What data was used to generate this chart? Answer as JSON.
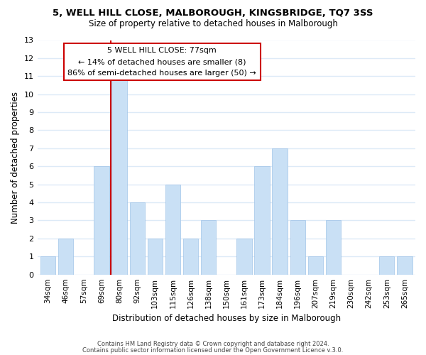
{
  "title1": "5, WELL HILL CLOSE, MALBOROUGH, KINGSBRIDGE, TQ7 3SS",
  "title2": "Size of property relative to detached houses in Malborough",
  "xlabel": "Distribution of detached houses by size in Malborough",
  "ylabel": "Number of detached properties",
  "bar_labels": [
    "34sqm",
    "46sqm",
    "57sqm",
    "69sqm",
    "80sqm",
    "92sqm",
    "103sqm",
    "115sqm",
    "126sqm",
    "138sqm",
    "150sqm",
    "161sqm",
    "173sqm",
    "184sqm",
    "196sqm",
    "207sqm",
    "219sqm",
    "230sqm",
    "242sqm",
    "253sqm",
    "265sqm"
  ],
  "bar_values": [
    1,
    2,
    0,
    6,
    11,
    4,
    2,
    5,
    2,
    3,
    0,
    2,
    6,
    7,
    3,
    1,
    3,
    0,
    0,
    1,
    1
  ],
  "bar_color": "#c9e0f5",
  "bar_edge_color": "#a0c4e8",
  "vline_index": 4,
  "vline_color": "#cc0000",
  "annotation_title": "5 WELL HILL CLOSE: 77sqm",
  "annotation_line1": "← 14% of detached houses are smaller (8)",
  "annotation_line2": "86% of semi-detached houses are larger (50) →",
  "annotation_box_color": "#ffffff",
  "annotation_box_edge": "#cc0000",
  "ylim": [
    0,
    13
  ],
  "yticks": [
    0,
    1,
    2,
    3,
    4,
    5,
    6,
    7,
    8,
    9,
    10,
    11,
    12,
    13
  ],
  "footer1": "Contains HM Land Registry data © Crown copyright and database right 2024.",
  "footer2": "Contains public sector information licensed under the Open Government Licence v.3.0.",
  "grid_color": "#ddeaf7",
  "background_color": "#ffffff"
}
